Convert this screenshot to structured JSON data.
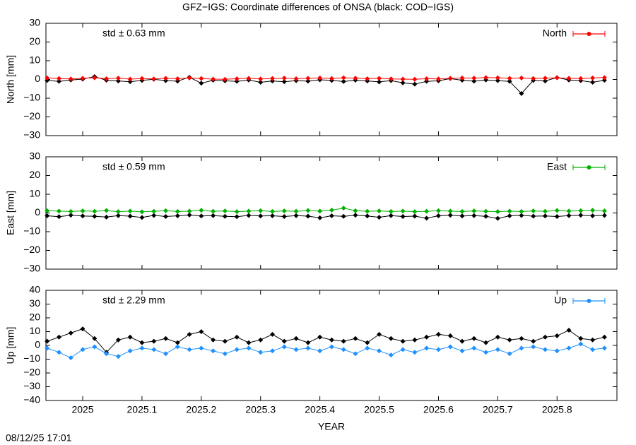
{
  "title": "GFZ−IGS: Coordinate differences of ONSA (black: COD−IGS)",
  "timestamp": "08/12/25 17:01",
  "chart_data": [
    {
      "type": "line",
      "ylabel": "North [mm]",
      "annotation": "std ± 0.63 mm",
      "legend": "upper right",
      "xlim": [
        2024.938,
        2025.901
      ],
      "xticks": [
        2025,
        2025.1,
        2025.2,
        2025.3,
        2025.4,
        2025.5,
        2025.6,
        2025.7,
        2025.8
      ],
      "ylim": [
        -30,
        30
      ],
      "yticks": [
        {
          "value": -30,
          "label": "−30"
        },
        {
          "value": -20,
          "label": "−20"
        },
        {
          "value": -10,
          "label": "−10"
        },
        0,
        10,
        20,
        30
      ],
      "x": [
        2024.94,
        2024.96,
        2024.98,
        2025,
        2025.02,
        2025.04,
        2025.06,
        2025.08,
        2025.1,
        2025.12,
        2025.14,
        2025.16,
        2025.18,
        2025.2,
        2025.22,
        2025.24,
        2025.26,
        2025.28,
        2025.3,
        2025.32,
        2025.34,
        2025.36,
        2025.38,
        2025.4,
        2025.42,
        2025.44,
        2025.46,
        2025.48,
        2025.5,
        2025.52,
        2025.54,
        2025.56,
        2025.58,
        2025.6,
        2025.62,
        2025.64,
        2025.66,
        2025.68,
        2025.7,
        2025.72,
        2025.74,
        2025.76,
        2025.78,
        2025.8,
        2025.82,
        2025.84,
        2025.86,
        2025.88
      ],
      "series": [
        {
          "color": "#000000",
          "values": [
            -0.5,
            -1.0,
            -0.3,
            0.2,
            1.5,
            -0.4,
            -0.8,
            -1.2,
            -0.5,
            0.1,
            -0.6,
            -0.9,
            1.2,
            -2.0,
            -0.4,
            -0.7,
            -1.0,
            -0.3,
            -1.5,
            -0.8,
            -1.2,
            -0.6,
            -0.9,
            -0.2,
            -0.5,
            -1.1,
            -0.4,
            -0.8,
            -1.3,
            -0.6,
            -1.8,
            -2.5,
            -1.0,
            -0.7,
            0.5,
            -0.4,
            -0.9,
            -0.3,
            -0.6,
            -1.0,
            -7.5,
            -0.5,
            -0.8,
            1.0,
            -0.3,
            -0.6,
            -1.5,
            -0.4
          ]
        },
        {
          "name": "North",
          "color": "#ff0000",
          "values": [
            0.8,
            0.5,
            0.3,
            0.6,
            0.9,
            0.4,
            0.7,
            0.2,
            0.5,
            0.3,
            0.6,
            0.4,
            0.8,
            0.5,
            0.2,
            0.1,
            0.4,
            0.6,
            0.3,
            0.5,
            0.7,
            0.4,
            0.6,
            0.8,
            0.5,
            0.9,
            0.7,
            0.4,
            0.6,
            0.3,
            0.2,
            0.1,
            0.4,
            0.3,
            0.6,
            0.8,
            0.7,
            1.0,
            0.9,
            0.6,
            0.8,
            0.5,
            0.7,
            0.9,
            0.6,
            0.5,
            0.8,
            1.0
          ]
        }
      ]
    },
    {
      "type": "line",
      "ylabel": "East [mm]",
      "annotation": "std ± 0.59 mm",
      "legend": "upper right",
      "xlim": [
        2024.938,
        2025.901
      ],
      "xticks": [
        2025,
        2025.1,
        2025.2,
        2025.3,
        2025.4,
        2025.5,
        2025.6,
        2025.7,
        2025.8
      ],
      "ylim": [
        -30,
        30
      ],
      "yticks": [
        {
          "value": -30,
          "label": "−30"
        },
        {
          "value": -20,
          "label": "−20"
        },
        {
          "value": -10,
          "label": "−10"
        },
        0,
        10,
        20,
        30
      ],
      "x": [
        2024.94,
        2024.96,
        2024.98,
        2025,
        2025.02,
        2025.04,
        2025.06,
        2025.08,
        2025.1,
        2025.12,
        2025.14,
        2025.16,
        2025.18,
        2025.2,
        2025.22,
        2025.24,
        2025.26,
        2025.28,
        2025.3,
        2025.32,
        2025.34,
        2025.36,
        2025.38,
        2025.4,
        2025.42,
        2025.44,
        2025.46,
        2025.48,
        2025.5,
        2025.52,
        2025.54,
        2025.56,
        2025.58,
        2025.6,
        2025.62,
        2025.64,
        2025.66,
        2025.68,
        2025.7,
        2025.72,
        2025.74,
        2025.76,
        2025.78,
        2025.8,
        2025.82,
        2025.84,
        2025.86,
        2025.88
      ],
      "series": [
        {
          "color": "#000000",
          "values": [
            -1.5,
            -2.0,
            -1.2,
            -1.6,
            -1.8,
            -2.2,
            -1.4,
            -1.7,
            -2.4,
            -1.3,
            -1.9,
            -1.5,
            -1.1,
            -1.6,
            -1.4,
            -1.8,
            -2.0,
            -1.3,
            -1.6,
            -1.5,
            -1.9,
            -1.4,
            -1.7,
            -2.6,
            -1.5,
            -1.8,
            -1.2,
            -1.6,
            -2.3,
            -1.4,
            -1.9,
            -1.7,
            -2.8,
            -1.5,
            -1.2,
            -1.6,
            -1.4,
            -1.8,
            -2.9,
            -1.5,
            -1.3,
            -1.7,
            -1.6,
            -1.9,
            -1.4,
            -1.2,
            -1.5,
            -1.3
          ]
        },
        {
          "name": "East",
          "color": "#00b000",
          "values": [
            1.2,
            1.0,
            0.8,
            1.1,
            0.9,
            1.3,
            0.7,
            1.0,
            0.6,
            0.9,
            1.2,
            0.8,
            1.0,
            1.4,
            0.9,
            1.1,
            0.7,
            1.0,
            1.2,
            0.8,
            1.1,
            0.9,
            1.3,
            1.0,
            1.5,
            2.6,
            1.2,
            0.9,
            1.1,
            0.8,
            1.0,
            0.7,
            0.9,
            1.2,
            1.0,
            0.8,
            1.1,
            0.9,
            0.7,
            1.0,
            0.8,
            1.1,
            0.9,
            1.3,
            1.0,
            1.2,
            1.4,
            1.1
          ]
        }
      ]
    },
    {
      "type": "line",
      "ylabel": "Up [mm]",
      "xlabel": "YEAR",
      "annotation": "std ± 2.29 mm",
      "legend": "upper right",
      "xlim": [
        2024.938,
        2025.901
      ],
      "xticks": [
        2025,
        2025.1,
        2025.2,
        2025.3,
        2025.4,
        2025.5,
        2025.6,
        2025.7,
        2025.8
      ],
      "ylim": [
        -40,
        40
      ],
      "yticks": [
        {
          "value": -40,
          "label": "−40"
        },
        {
          "value": -30,
          "label": "−30"
        },
        {
          "value": -20,
          "label": "−20"
        },
        {
          "value": -10,
          "label": "−10"
        },
        0,
        10,
        20,
        30,
        40
      ],
      "x": [
        2024.94,
        2024.96,
        2024.98,
        2025,
        2025.02,
        2025.04,
        2025.06,
        2025.08,
        2025.1,
        2025.12,
        2025.14,
        2025.16,
        2025.18,
        2025.2,
        2025.22,
        2025.24,
        2025.26,
        2025.28,
        2025.3,
        2025.32,
        2025.34,
        2025.36,
        2025.38,
        2025.4,
        2025.42,
        2025.44,
        2025.46,
        2025.48,
        2025.5,
        2025.52,
        2025.54,
        2025.56,
        2025.58,
        2025.6,
        2025.62,
        2025.64,
        2025.66,
        2025.68,
        2025.7,
        2025.72,
        2025.74,
        2025.76,
        2025.78,
        2025.8,
        2025.82,
        2025.84,
        2025.86,
        2025.88
      ],
      "series": [
        {
          "color": "#000000",
          "values": [
            3,
            6,
            9,
            12,
            5,
            -5,
            4,
            6,
            2,
            3,
            5,
            2,
            8,
            10,
            4,
            3,
            6,
            2,
            4,
            8,
            3,
            5,
            2,
            6,
            4,
            3,
            5,
            2,
            8,
            5,
            3,
            4,
            6,
            8,
            7,
            3,
            5,
            2,
            6,
            4,
            5,
            3,
            6,
            7,
            11,
            5,
            4,
            6
          ]
        },
        {
          "name": "Up",
          "color": "#1e90ff",
          "values": [
            -2,
            -5,
            -9,
            -3,
            -1,
            -6,
            -8,
            -4,
            -2,
            -3,
            -6,
            -1,
            -3,
            -2,
            -4,
            -6,
            -3,
            -2,
            -5,
            -4,
            -1,
            -3,
            -2,
            -4,
            -1,
            -3,
            -6,
            -2,
            -4,
            -7,
            -3,
            -5,
            -2,
            -3,
            -1,
            -4,
            -2,
            -5,
            -3,
            -6,
            -2,
            -1,
            -3,
            -4,
            -2,
            1,
            -3,
            -2
          ]
        }
      ]
    }
  ]
}
